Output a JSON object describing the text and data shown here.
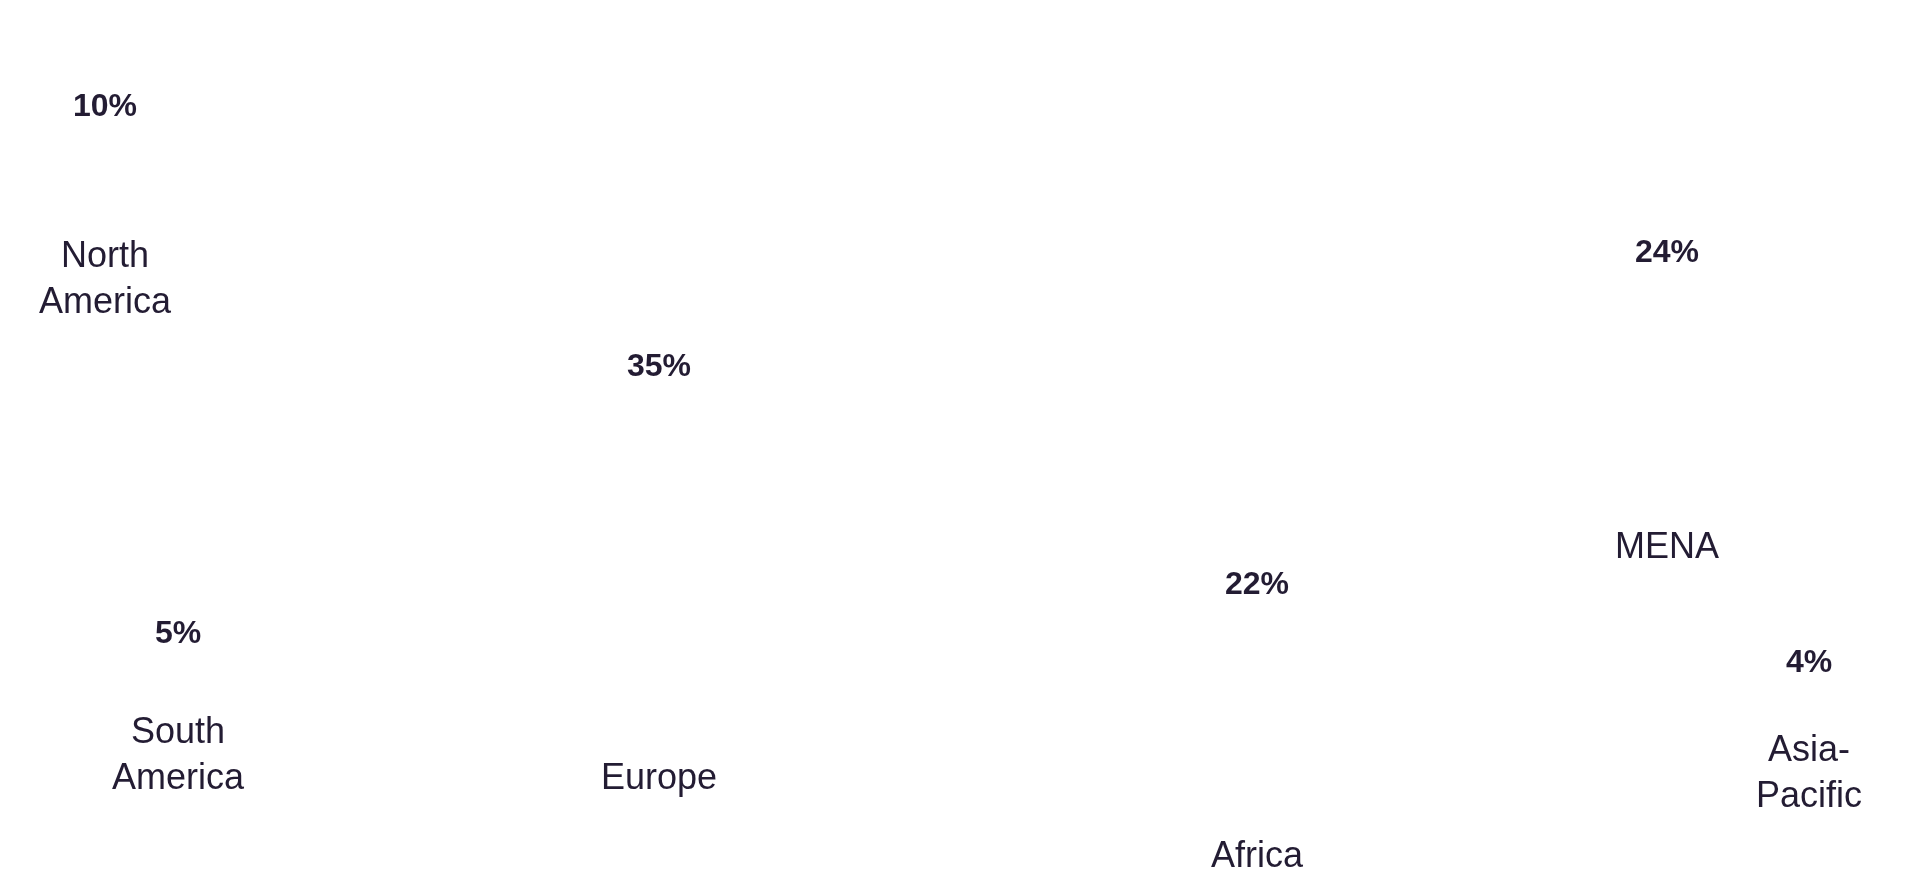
{
  "chart_data": {
    "type": "other",
    "categories": [
      "North America",
      "South America",
      "Europe",
      "Africa",
      "MENA",
      "Asia-Pacific"
    ],
    "values": [
      10,
      5,
      35,
      22,
      24,
      4
    ],
    "value_labels": [
      "10%",
      "5%",
      "35%",
      "22%",
      "24%",
      "4%"
    ],
    "color": "#231c33"
  }
}
